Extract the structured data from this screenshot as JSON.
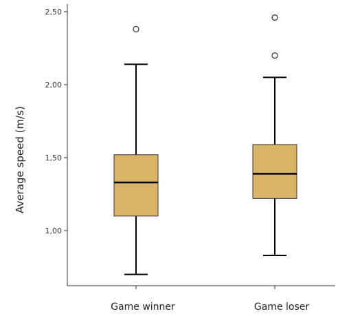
{
  "chart_data": {
    "type": "boxplot",
    "ylabel": "Average speed (m/s)",
    "ylim": [
      0.65,
      2.5
    ],
    "yticks": [
      {
        "value": 2.5,
        "label": "2,50"
      },
      {
        "value": 2.0,
        "label": "2,00"
      },
      {
        "value": 1.5,
        "label": "1,50"
      },
      {
        "value": 1.0,
        "label": "1,00"
      }
    ],
    "categories": [
      "Game winner",
      "Game loser"
    ],
    "boxes": [
      {
        "category": "Game winner",
        "whisker_low": 0.7,
        "q1": 1.1,
        "median": 1.33,
        "q3": 1.52,
        "whisker_high": 2.14,
        "outliers": [
          2.38
        ]
      },
      {
        "category": "Game loser",
        "whisker_low": 0.83,
        "q1": 1.22,
        "median": 1.39,
        "q3": 1.59,
        "whisker_high": 2.05,
        "outliers": [
          2.46,
          2.2
        ]
      }
    ],
    "box_color": "#d9b467",
    "line_color": "#000000",
    "grid": false
  }
}
